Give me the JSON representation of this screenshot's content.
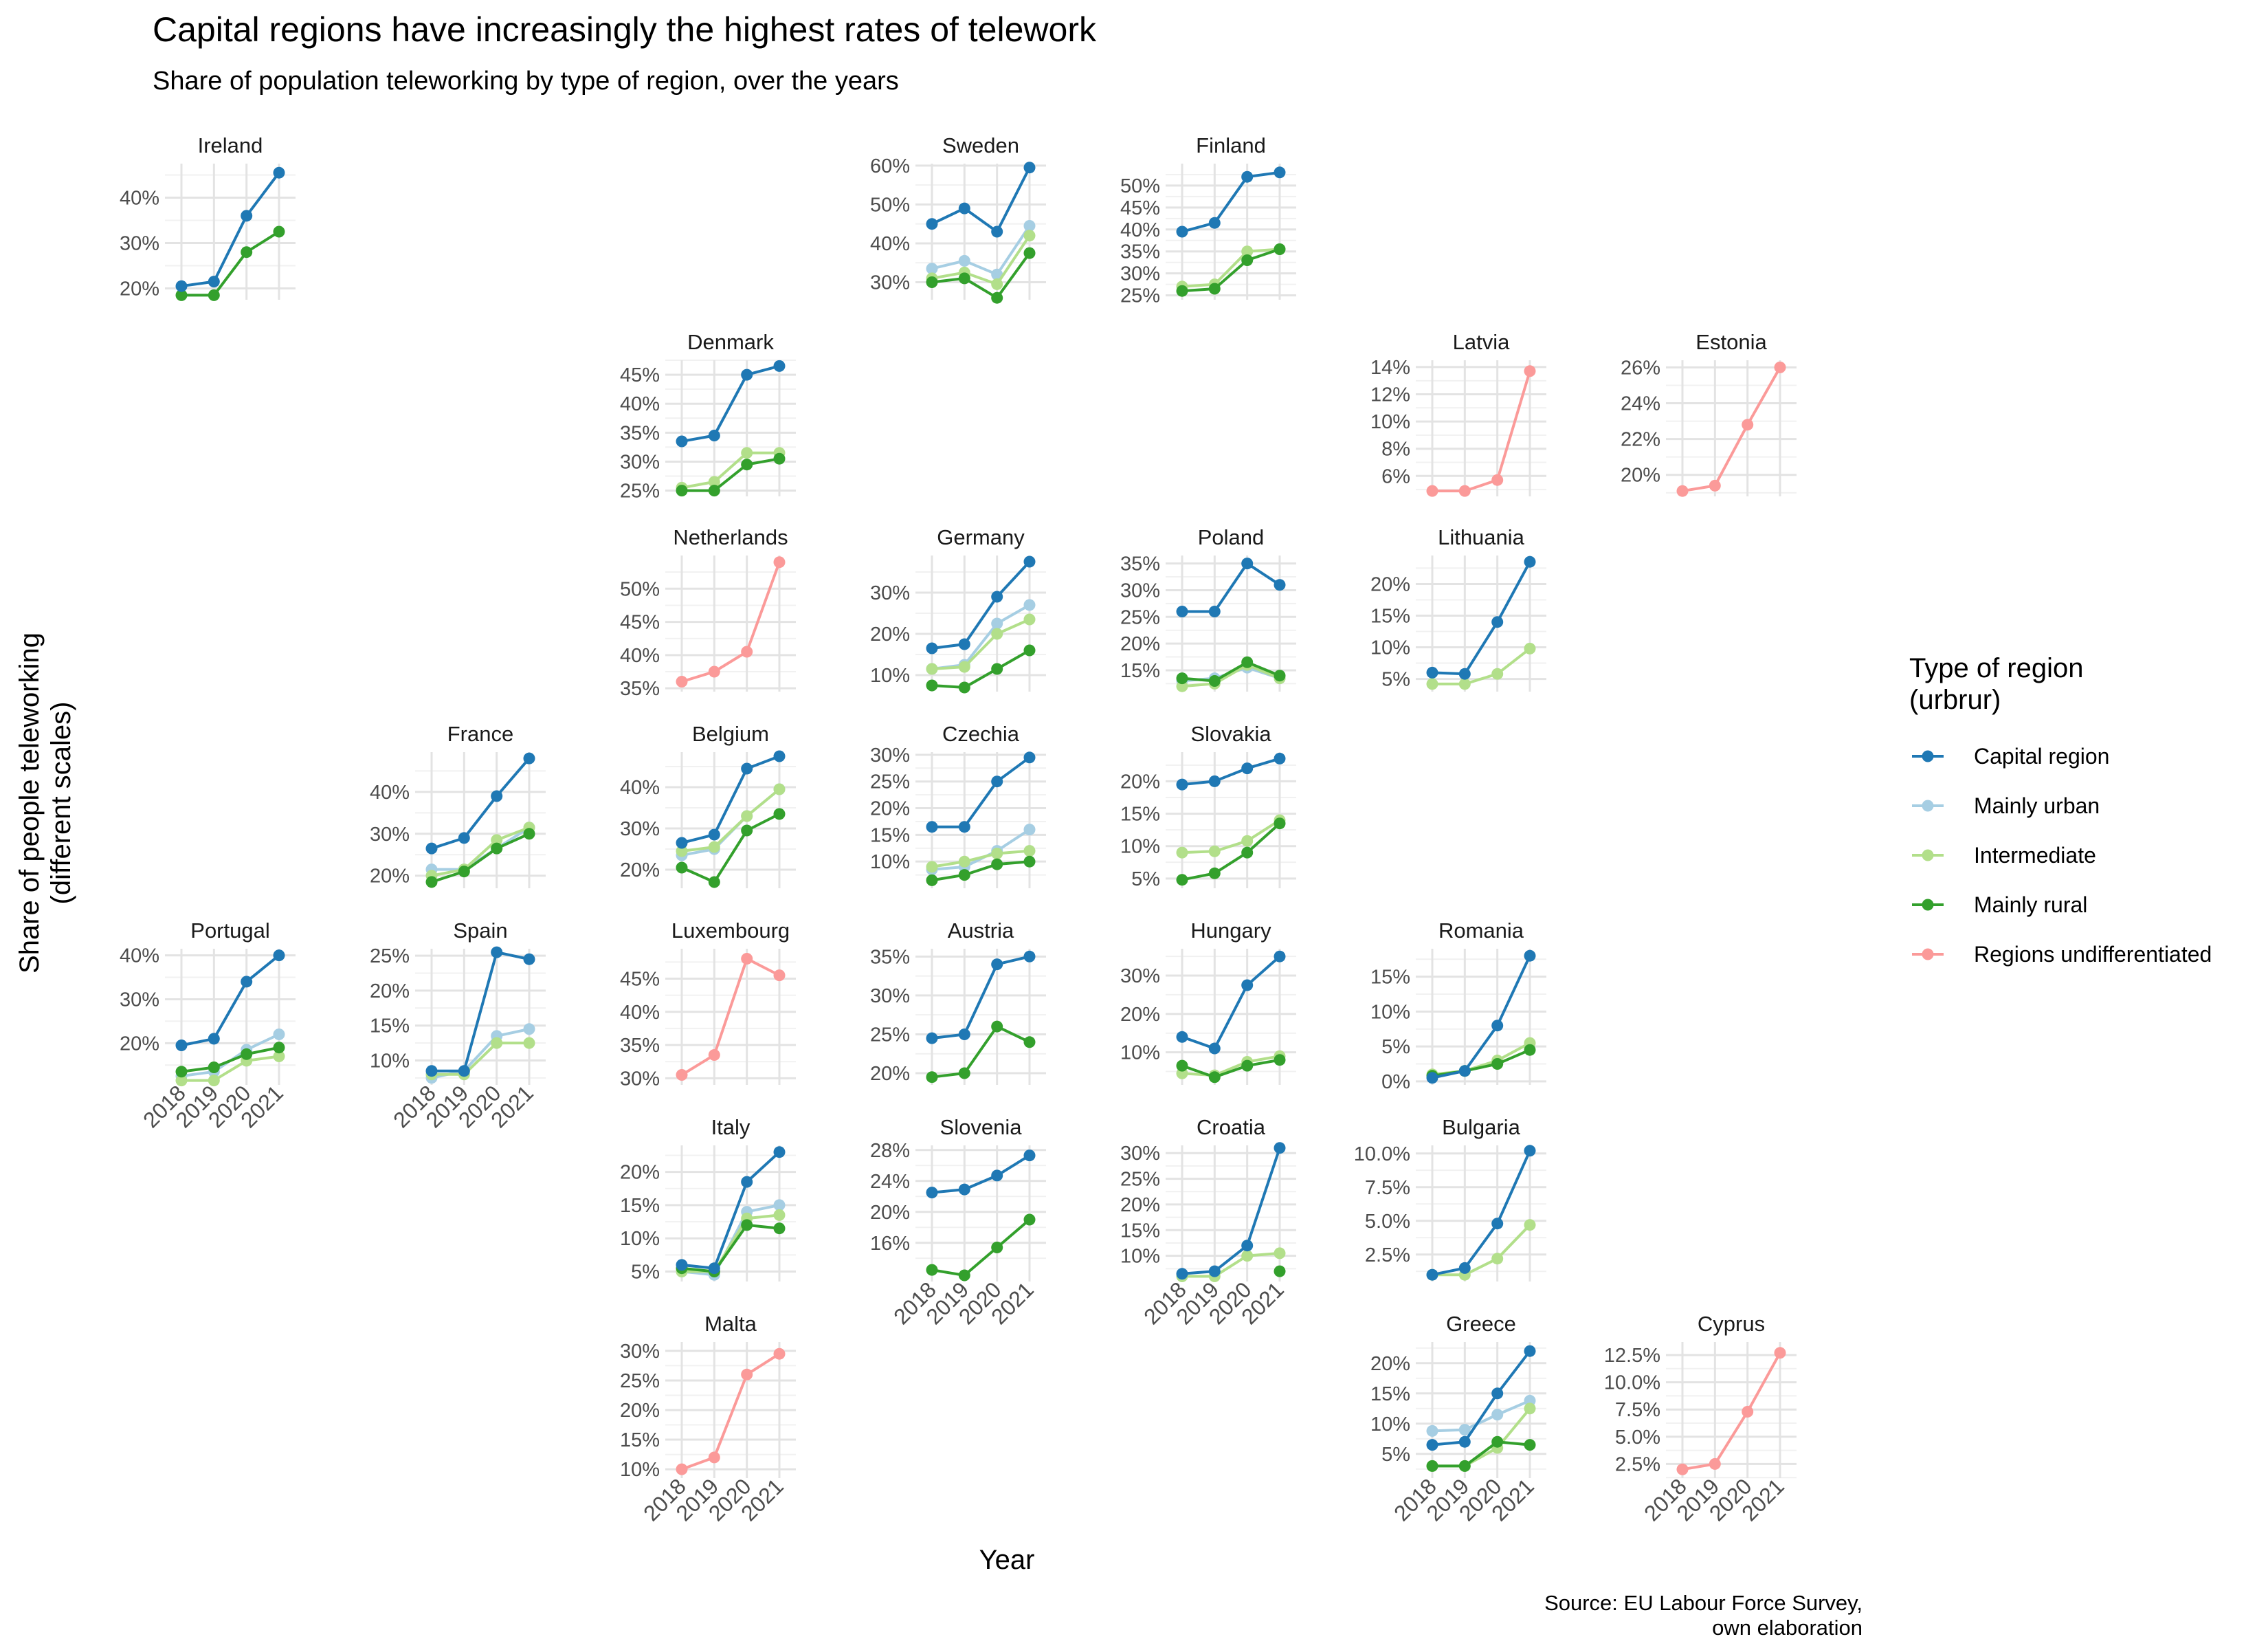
{
  "title": "Capital regions have increasingly the highest rates of telework",
  "subtitle": "Share of population teleworking by type of region, over the years",
  "xlabel": "Year",
  "ylabel": [
    "Share of people teleworking",
    "(different scales)"
  ],
  "caption": [
    "Source: EU Labour Force Survey,",
    "own elaboration"
  ],
  "legend": {
    "title": [
      "Type of region",
      "(urbrur)"
    ],
    "placement": "right",
    "items": [
      {
        "key": "capital",
        "label": "Capital region",
        "color": "#1f78b4"
      },
      {
        "key": "urban",
        "label": "Mainly urban",
        "color": "#a6cee3"
      },
      {
        "key": "intermediate",
        "label": "Intermediate",
        "color": "#b2df8a"
      },
      {
        "key": "rural",
        "label": "Mainly rural",
        "color": "#33a02c"
      },
      {
        "key": "undiff",
        "label": "Regions undifferentiated",
        "color": "#fb9a99"
      }
    ]
  },
  "chart_data": {
    "type": "line",
    "x": [
      "2018",
      "2019",
      "2020",
      "2021"
    ],
    "grid": true,
    "panels": [
      {
        "name": "Ireland",
        "yticks": [
          "20%",
          "30%",
          "40%"
        ],
        "ylim": [
          17.5,
          47.5
        ],
        "series": {
          "capital": [
            20.5,
            21.5,
            36,
            45.5
          ],
          "rural": [
            18.5,
            18.5,
            28,
            32.5
          ]
        }
      },
      {
        "name": "Sweden",
        "yticks": [
          "30%",
          "40%",
          "50%",
          "60%"
        ],
        "ylim": [
          25.5,
          60.5
        ],
        "series": {
          "capital": [
            45,
            49,
            43,
            59.5
          ],
          "urban": [
            33.5,
            35.5,
            32,
            44.5
          ],
          "intermediate": [
            31,
            32.5,
            29.5,
            42
          ],
          "rural": [
            30,
            31,
            26,
            37.5
          ]
        }
      },
      {
        "name": "Finland",
        "yticks": [
          "25%",
          "30%",
          "35%",
          "40%",
          "45%",
          "50%"
        ],
        "ylim": [
          24,
          55
        ],
        "series": {
          "capital": [
            39.5,
            41.5,
            52,
            53
          ],
          "intermediate": [
            27,
            27.5,
            35,
            35.5
          ],
          "rural": [
            26,
            26.5,
            33,
            35.5
          ]
        }
      },
      {
        "name": "Denmark",
        "yticks": [
          "25%",
          "30%",
          "35%",
          "40%",
          "45%"
        ],
        "ylim": [
          24,
          47.5
        ],
        "series": {
          "capital": [
            33.5,
            34.5,
            45,
            46.5
          ],
          "intermediate": [
            25.5,
            26.5,
            31.5,
            31.5
          ],
          "rural": [
            25,
            25,
            29.5,
            30.5
          ]
        }
      },
      {
        "name": "Latvia",
        "yticks": [
          "6%",
          "8%",
          "10%",
          "12%",
          "14%"
        ],
        "ylim": [
          4.5,
          14.5
        ],
        "series": {
          "undiff": [
            4.9,
            4.9,
            5.7,
            13.7
          ]
        }
      },
      {
        "name": "Estonia",
        "yticks": [
          "20%",
          "22%",
          "24%",
          "26%"
        ],
        "ylim": [
          18.8,
          26.4
        ],
        "series": {
          "undiff": [
            19.1,
            19.4,
            22.8,
            26
          ]
        }
      },
      {
        "name": "Netherlands",
        "yticks": [
          "35%",
          "40%",
          "45%",
          "50%"
        ],
        "ylim": [
          34.5,
          55
        ],
        "series": {
          "undiff": [
            36,
            37.5,
            40.5,
            54
          ]
        }
      },
      {
        "name": "Germany",
        "yticks": [
          "10%",
          "20%",
          "30%"
        ],
        "ylim": [
          6,
          39
        ],
        "series": {
          "capital": [
            16.5,
            17.5,
            29,
            37.5
          ],
          "urban": [
            11.5,
            12.5,
            22.5,
            27
          ],
          "intermediate": [
            11.5,
            12,
            20,
            23.5
          ],
          "rural": [
            7.5,
            7,
            11.5,
            16
          ]
        }
      },
      {
        "name": "Poland",
        "yticks": [
          "15%",
          "20%",
          "25%",
          "30%",
          "35%"
        ],
        "ylim": [
          11,
          36.5
        ],
        "series": {
          "capital": [
            26,
            26,
            35,
            31
          ],
          "urban": [
            13,
            13.5,
            15.5,
            13.5
          ],
          "intermediate": [
            12,
            12.5,
            16,
            13.5
          ],
          "rural": [
            13.5,
            13,
            16.5,
            14
          ]
        }
      },
      {
        "name": "Lithuania",
        "yticks": [
          "5%",
          "10%",
          "15%",
          "20%"
        ],
        "ylim": [
          3,
          24.5
        ],
        "series": {
          "capital": [
            6,
            5.8,
            14,
            23.5
          ],
          "intermediate": [
            4.2,
            4.2,
            5.8,
            9.8
          ]
        }
      },
      {
        "name": "France",
        "yticks": [
          "20%",
          "30%",
          "40%"
        ],
        "ylim": [
          17,
          49.5
        ],
        "series": {
          "capital": [
            26.5,
            29,
            39,
            48
          ],
          "urban": [
            21.5,
            21.5,
            26.5,
            31.5
          ],
          "intermediate": [
            20,
            21.5,
            28.5,
            31.5
          ],
          "rural": [
            18.5,
            21,
            26.5,
            30
          ]
        }
      },
      {
        "name": "Belgium",
        "yticks": [
          "20%",
          "30%",
          "40%"
        ],
        "ylim": [
          15.5,
          48.5
        ],
        "series": {
          "capital": [
            26.5,
            28.5,
            44.5,
            47.5
          ],
          "urban": [
            23.5,
            25,
            33,
            39.5
          ],
          "intermediate": [
            24.5,
            25.5,
            33,
            39.5
          ],
          "rural": [
            20.5,
            17,
            29.5,
            33.5
          ]
        }
      },
      {
        "name": "Czechia",
        "yticks": [
          "10%",
          "15%",
          "20%",
          "25%",
          "30%"
        ],
        "ylim": [
          5,
          30.5
        ],
        "series": {
          "capital": [
            16.5,
            16.5,
            25,
            29.5
          ],
          "urban": [
            8.5,
            9,
            12,
            16
          ],
          "intermediate": [
            9,
            10,
            11.5,
            12
          ],
          "rural": [
            6.5,
            7.5,
            9.5,
            10
          ]
        }
      },
      {
        "name": "Slovakia",
        "yticks": [
          "5%",
          "10%",
          "15%",
          "20%"
        ],
        "ylim": [
          3.5,
          24.5
        ],
        "series": {
          "capital": [
            19.5,
            20,
            22,
            23.5
          ],
          "intermediate": [
            9,
            9.2,
            10.8,
            14
          ],
          "rural": [
            4.8,
            5.8,
            9,
            13.5
          ]
        }
      },
      {
        "name": "Portugal",
        "yticks": [
          "20%",
          "30%",
          "40%"
        ],
        "ylim": [
          10.5,
          41.5
        ],
        "series": {
          "capital": [
            19.5,
            21,
            34,
            40
          ],
          "urban": [
            12.5,
            13.5,
            18.5,
            22
          ],
          "intermediate": [
            11.5,
            11.5,
            16,
            17
          ],
          "rural": [
            13.5,
            14.5,
            17.5,
            19
          ]
        }
      },
      {
        "name": "Spain",
        "yticks": [
          "10%",
          "15%",
          "20%",
          "25%"
        ],
        "ylim": [
          6.5,
          26
        ],
        "series": {
          "capital": [
            8.5,
            8.5,
            25.5,
            24.5
          ],
          "urban": [
            7.5,
            8.5,
            13.5,
            14.5
          ],
          "intermediate": [
            8,
            8,
            12.5,
            12.5
          ]
        }
      },
      {
        "name": "Luxembourg",
        "yticks": [
          "30%",
          "35%",
          "40%",
          "45%"
        ],
        "ylim": [
          29,
          49.5
        ],
        "series": {
          "undiff": [
            30.5,
            33.5,
            48,
            45.5
          ]
        }
      },
      {
        "name": "Austria",
        "yticks": [
          "20%",
          "25%",
          "30%",
          "35%"
        ],
        "ylim": [
          18.5,
          36
        ],
        "series": {
          "capital": [
            24.5,
            25,
            34,
            35
          ],
          "rural": [
            19.5,
            20,
            26,
            24
          ]
        }
      },
      {
        "name": "Hungary",
        "yticks": [
          "10%",
          "20%",
          "30%"
        ],
        "ylim": [
          1.5,
          37
        ],
        "series": {
          "capital": [
            14,
            11,
            27.5,
            35
          ],
          "intermediate": [
            4.5,
            4,
            7.5,
            9
          ],
          "rural": [
            6.5,
            3.5,
            6.5,
            8
          ]
        }
      },
      {
        "name": "Romania",
        "yticks": [
          "0%",
          "5%",
          "10%",
          "15%"
        ],
        "ylim": [
          -0.5,
          19
        ],
        "series": {
          "capital": [
            0.5,
            1.5,
            8,
            18
          ],
          "intermediate": [
            1,
            1.5,
            3,
            5.5
          ],
          "rural": [
            0.8,
            1.5,
            2.5,
            4.5
          ]
        }
      },
      {
        "name": "Italy",
        "yticks": [
          "5%",
          "10%",
          "15%",
          "20%"
        ],
        "ylim": [
          3.5,
          24
        ],
        "series": {
          "capital": [
            6,
            5.5,
            18.5,
            23
          ],
          "urban": [
            5,
            4.5,
            14,
            15
          ],
          "intermediate": [
            5,
            5,
            13,
            13.5
          ],
          "rural": [
            5.5,
            5,
            12,
            11.5
          ]
        }
      },
      {
        "name": "Slovenia",
        "yticks": [
          "16%",
          "20%",
          "24%",
          "28%"
        ],
        "ylim": [
          11,
          28.6
        ],
        "series": {
          "capital": [
            22.5,
            22.9,
            24.7,
            27.3
          ],
          "rural": [
            12.5,
            11.8,
            15.4,
            19
          ]
        }
      },
      {
        "name": "Croatia",
        "yticks": [
          "10%",
          "15%",
          "20%",
          "25%",
          "30%"
        ],
        "ylim": [
          5,
          31.5
        ],
        "series": {
          "capital": [
            6.5,
            7,
            12,
            31
          ],
          "intermediate": [
            6,
            6,
            10,
            10.5
          ],
          "rural": [
            null,
            null,
            null,
            7
          ]
        }
      },
      {
        "name": "Bulgaria",
        "yticks": [
          "2.5%",
          "5.0%",
          "7.5%",
          "10.0%"
        ],
        "ylim": [
          0.5,
          10.6
        ],
        "series": {
          "capital": [
            1,
            1.5,
            4.8,
            10.2
          ],
          "intermediate": [
            1,
            1,
            2.2,
            4.7
          ]
        }
      },
      {
        "name": "Malta",
        "yticks": [
          "10%",
          "15%",
          "20%",
          "25%",
          "30%"
        ],
        "ylim": [
          8.5,
          31.5
        ],
        "series": {
          "undiff": [
            10,
            12,
            26,
            29.5
          ]
        }
      },
      {
        "name": "Greece",
        "yticks": [
          "5%",
          "10%",
          "15%",
          "20%"
        ],
        "ylim": [
          1,
          23.5
        ],
        "series": {
          "capital": [
            6.5,
            7,
            15,
            22
          ],
          "urban": [
            8.8,
            9,
            11.5,
            13.8
          ],
          "intermediate": [
            3,
            3,
            6,
            12.5
          ],
          "rural": [
            3,
            3,
            7,
            6.5
          ]
        }
      },
      {
        "name": "Cyprus",
        "yticks": [
          "2.5%",
          "5.0%",
          "7.5%",
          "10.0%",
          "12.5%"
        ],
        "ylim": [
          1.2,
          13.7
        ],
        "series": {
          "undiff": [
            2,
            2.5,
            7.3,
            12.7
          ]
        }
      }
    ]
  }
}
